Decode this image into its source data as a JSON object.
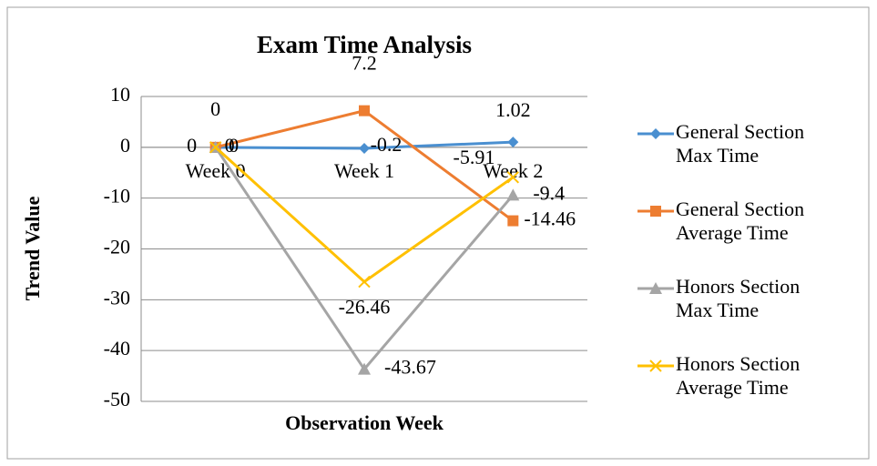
{
  "chart_data": {
    "type": "line",
    "title": "Exam Time Analysis",
    "x_label": "Observation Week",
    "y_label": "Trend Value",
    "categories": [
      "Week 0",
      "Week 1",
      "Week 2"
    ],
    "series": [
      {
        "name": "General Section Max Time",
        "color": "#4a8fd0",
        "marker": "diamond",
        "values": [
          0,
          -0.2,
          1.02
        ]
      },
      {
        "name": "General Section Average Time",
        "color": "#ed7d31",
        "marker": "square",
        "values": [
          0,
          7.2,
          -14.46
        ]
      },
      {
        "name": "Honors Section Max Time",
        "color": "#a5a5a5",
        "marker": "triangle",
        "values": [
          0,
          -43.67,
          -9.4
        ]
      },
      {
        "name": "Honors Section Average Time",
        "color": "#ffc000",
        "marker": "x",
        "values": [
          0,
          -26.46,
          -5.91
        ]
      }
    ],
    "ylim": [
      -50,
      10
    ],
    "yticks": [
      10,
      0,
      -10,
      -20,
      -30,
      -40,
      -50
    ],
    "grid": true,
    "legend": "right"
  }
}
